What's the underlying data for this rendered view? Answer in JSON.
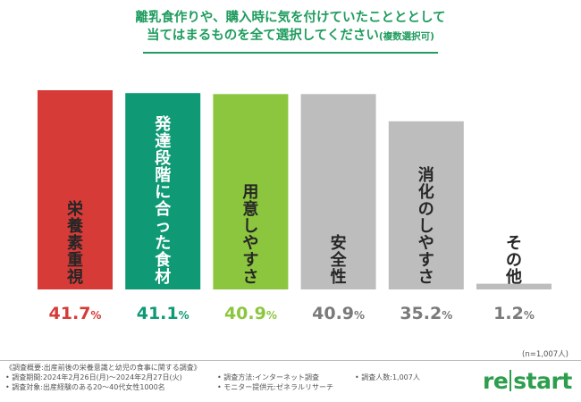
{
  "title": {
    "line1": "離乳食作りや、購入時に気を付けていたことととして",
    "line2": "当てはまるものを全て選択してください",
    "line2_note": "(複数選択可)"
  },
  "chart_data": {
    "type": "bar",
    "categories": [
      "栄養素重視",
      "発達段階に合った食材",
      "用意しやすさ",
      "安全性",
      "消化のしやすさ",
      "その他"
    ],
    "values": [
      41.7,
      41.1,
      40.9,
      40.9,
      35.2,
      1.2
    ],
    "value_labels": [
      "41.7",
      "41.1",
      "40.9",
      "40.9",
      "35.2",
      "1.2"
    ],
    "unit": "%",
    "ylim": [
      0,
      41.7
    ],
    "grid": false,
    "colors": [
      "#d63b38",
      "#0f9a75",
      "#8cc63f",
      "#bdbdbd",
      "#bdbdbd",
      "#bdbdbd"
    ],
    "label_colors": [
      "#262626",
      "#ffffff",
      "#262626",
      "#262626",
      "#262626",
      "#262626"
    ],
    "value_colors": [
      "#d63b38",
      "#0f9a75",
      "#8cc63f",
      "#7a7a7a",
      "#7a7a7a",
      "#7a7a7a"
    ]
  },
  "note": "(n=1,007人)",
  "footer": {
    "overview": "《調査概要:出産前後の栄養意識と幼児の食事に関する調査》",
    "period": "• 調査期間:2024年2月26日(月)〜2024年2月27日(火)",
    "method": "• 調査方法:インターネット調査",
    "count": "• 調査人数:1,007人",
    "target": "• 調査対象:出産経験のある20〜40代女性1000名",
    "provider": "• モニター提供元:ゼネラルリサーチ"
  },
  "logo": {
    "left": "re",
    "right": "start"
  }
}
